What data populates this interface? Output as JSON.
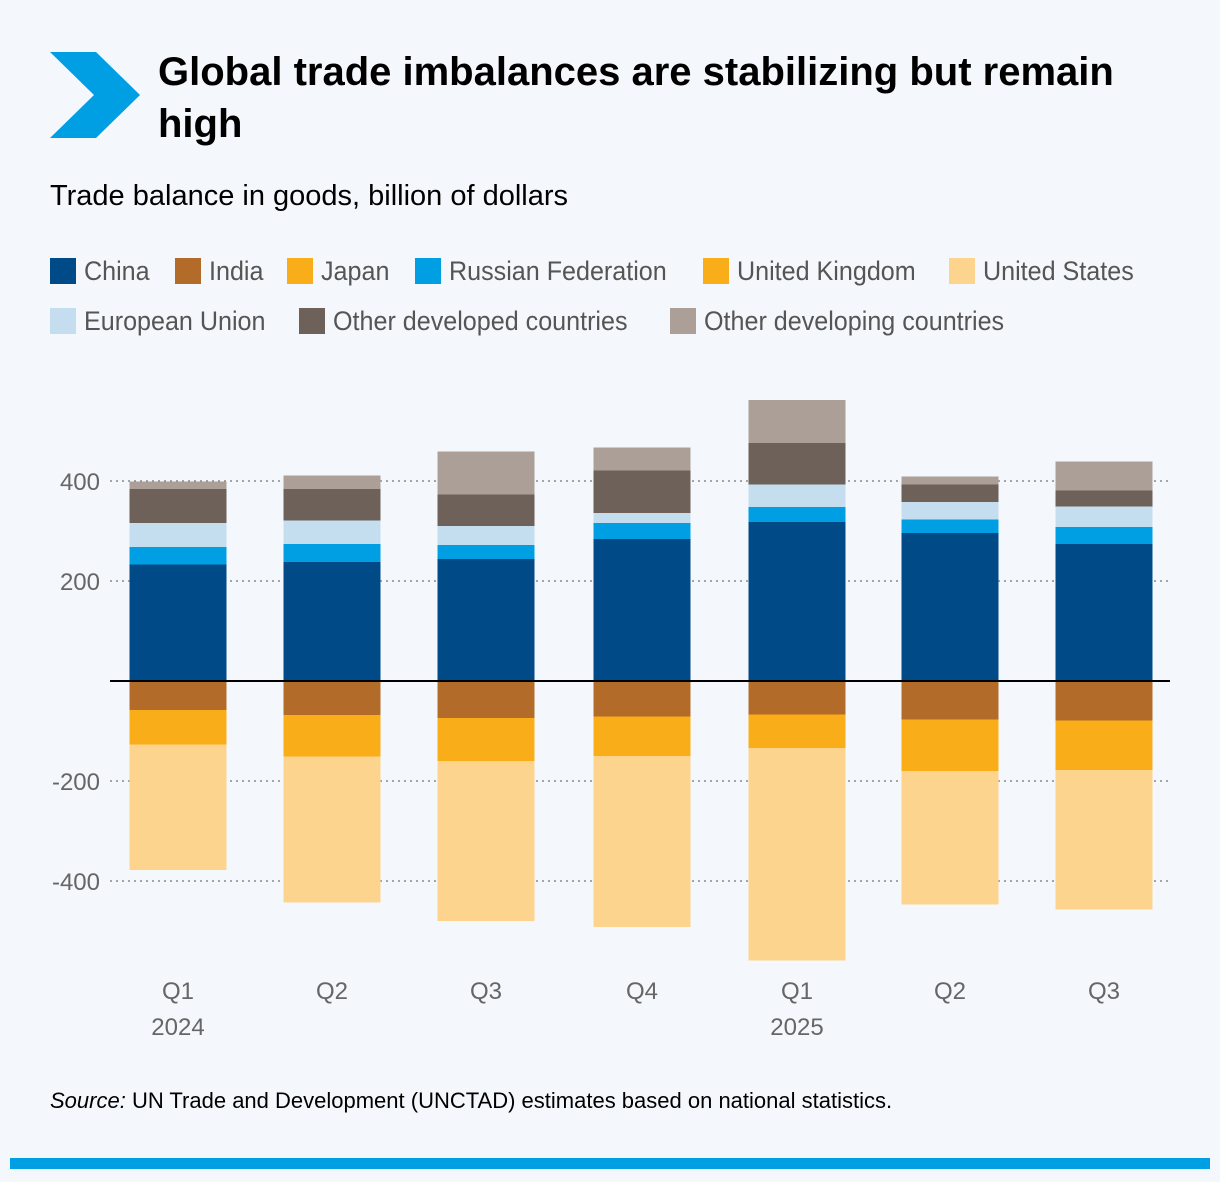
{
  "title": "Global trade imbalances are stabilizing but remain high",
  "subtitle": "Trade balance in goods, billion of dollars",
  "source": {
    "prefix": "Source:",
    "text": " UN Trade and Development (UNCTAD) estimates based on national statistics."
  },
  "colors": {
    "brand_accent": "#009fe3",
    "background": "#f4f8fc"
  },
  "legend_rows": [
    [
      "China",
      "India",
      "Japan",
      "Russian Federation",
      "United Kingdom",
      "United States"
    ],
    [
      "European Union",
      "Other developed countries",
      "Other developing countries"
    ]
  ],
  "chart_data": {
    "type": "bar",
    "stacked": true,
    "ylim": [
      -560,
      570
    ],
    "yticks": [
      400,
      200,
      -200,
      -400
    ],
    "grid": true,
    "legend_position": "top",
    "categories": [
      "Q1",
      "Q2",
      "Q3",
      "Q4",
      "Q1",
      "Q2",
      "Q3"
    ],
    "year_labels": [
      "2024",
      "",
      "",
      "",
      "2025",
      "",
      ""
    ],
    "series": [
      {
        "name": "China",
        "color": "#004b87",
        "values": [
          233,
          238,
          244,
          284,
          318,
          296,
          274
        ]
      },
      {
        "name": "India",
        "color": "#b36b29",
        "values": [
          -58,
          -68,
          -74,
          -71,
          -67,
          -77,
          -79
        ]
      },
      {
        "name": "Japan",
        "color": "#f9ad18",
        "values": [
          -69,
          -83,
          -86,
          -79,
          -67,
          -103,
          -99
        ]
      },
      {
        "name": "Russian Federation",
        "color": "#009fe3",
        "values": [
          35,
          36,
          28,
          32,
          30,
          27,
          34
        ]
      },
      {
        "name": "United Kingdom",
        "color": "#f9ad18",
        "values": [
          0,
          0,
          0,
          0,
          0,
          0,
          0
        ]
      },
      {
        "name": "United States",
        "color": "#fdd48e",
        "values": [
          -251,
          -292,
          -320,
          -342,
          -425,
          -267,
          -279
        ]
      },
      {
        "name": "European Union",
        "color": "#c4def0",
        "values": [
          48,
          47,
          38,
          20,
          45,
          35,
          41
        ]
      },
      {
        "name": "Other developed countries",
        "color": "#6e6159",
        "values": [
          68,
          63,
          63,
          85,
          83,
          35,
          32
        ]
      },
      {
        "name": "Other developing countries",
        "color": "#ab9f98",
        "values": [
          15,
          27,
          86,
          46,
          86,
          16,
          58
        ]
      }
    ]
  }
}
